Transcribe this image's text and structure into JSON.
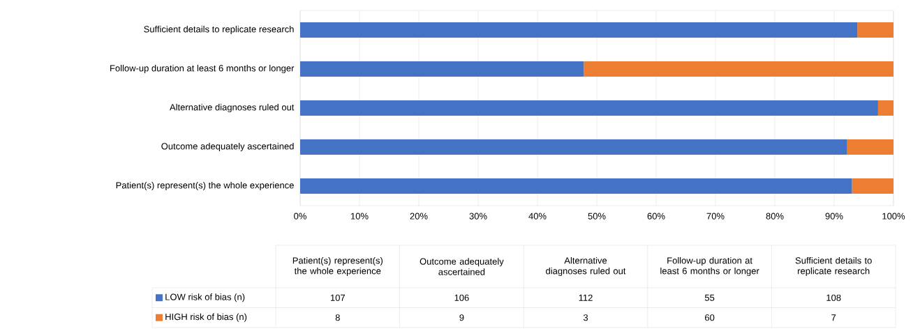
{
  "chart_data": [
    {
      "type": "bar",
      "orientation": "horizontal",
      "stacked": true,
      "categories": [
        "Sufficient details to replicate research",
        "Follow-up duration at least 6 months or longer",
        "Alternative diagnoses ruled out",
        "Outcome adequately ascertained",
        "Patient(s) represent(s) the whole experience"
      ],
      "series": [
        {
          "color": "#4472c4",
          "values": [
            93.9,
            47.8,
            97.4,
            92.2,
            93.0
          ]
        },
        {
          "color": "#ed7d31",
          "values": [
            6.1,
            52.2,
            2.6,
            7.8,
            7.0
          ]
        }
      ],
      "xlim": [
        0,
        100
      ],
      "xticks": [
        {
          "value": 0,
          "label": "0%"
        },
        {
          "value": 10,
          "label": "10%"
        },
        {
          "value": 20,
          "label": "20%"
        },
        {
          "value": 30,
          "label": "30%"
        },
        {
          "value": 40,
          "label": "40%"
        },
        {
          "value": 50,
          "label": "50%"
        },
        {
          "value": 60,
          "label": "60%"
        },
        {
          "value": 70,
          "label": "70%"
        },
        {
          "value": 80,
          "label": "80%"
        },
        {
          "value": 90,
          "label": "90%"
        },
        {
          "value": 100,
          "label": "100%"
        }
      ],
      "grid": "x"
    },
    {
      "type": "other",
      "categories": [
        "Patient(s) represent(s) the whole experience",
        "Outcome adequately ascertained",
        "Alternative diagnoses ruled out",
        "Follow-up duration at least 6 months or longer",
        "Sufficient details to replicate research"
      ],
      "series": [
        {
          "name": "LOW risk of bias (n)",
          "color": "#4472c4",
          "values": [
            107,
            106,
            112,
            55,
            108
          ]
        },
        {
          "name": "HIGH risk of bias (n)",
          "color": "#ed7d31",
          "values": [
            8,
            9,
            3,
            60,
            7
          ]
        }
      ],
      "data_labels": true,
      "legend": "left"
    }
  ]
}
